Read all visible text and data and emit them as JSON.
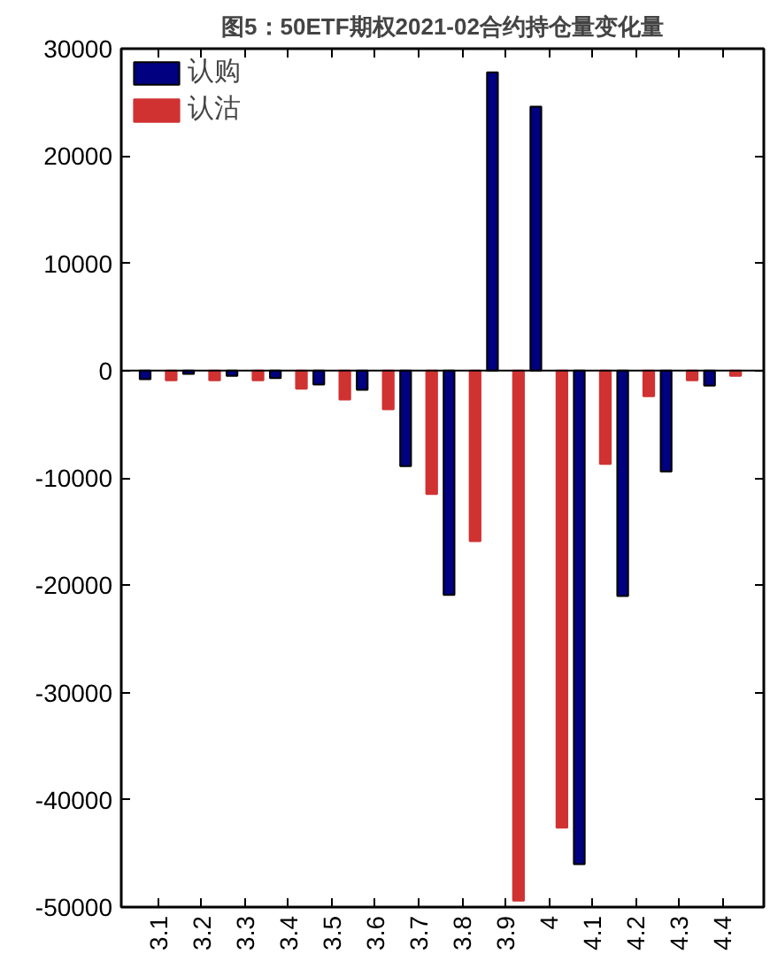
{
  "chart_data": {
    "type": "bar",
    "title": "图5：50ETF期权2021-02合约持仓量变化量",
    "categories": [
      "3.1",
      "3.2",
      "3.3",
      "3.4",
      "3.5",
      "3.6",
      "3.7",
      "3.8",
      "3.9",
      "4",
      "4.1",
      "4.2",
      "4.3",
      "4.4"
    ],
    "series": [
      {
        "name": "认购",
        "color": "#000080",
        "values": [
          -800,
          -300,
          -500,
          -700,
          -1300,
          -1800,
          -8900,
          -20900,
          27800,
          24600,
          -46000,
          -21000,
          -9400,
          -1400
        ]
      },
      {
        "name": "认沽",
        "color": "#d03232",
        "values": [
          -900,
          -900,
          -900,
          -1700,
          -2700,
          -3600,
          -11500,
          -15900,
          -49400,
          -42600,
          -8700,
          -2400,
          -900,
          -500
        ]
      }
    ],
    "ylim": [
      -50000,
      30000
    ],
    "yticks": [
      -50000,
      -40000,
      -30000,
      -20000,
      -10000,
      0,
      10000,
      20000,
      30000
    ],
    "ref_lines": [
      {
        "axis": "y",
        "value": 0,
        "color": "#000000"
      }
    ],
    "grid": false,
    "legend": "top left"
  }
}
